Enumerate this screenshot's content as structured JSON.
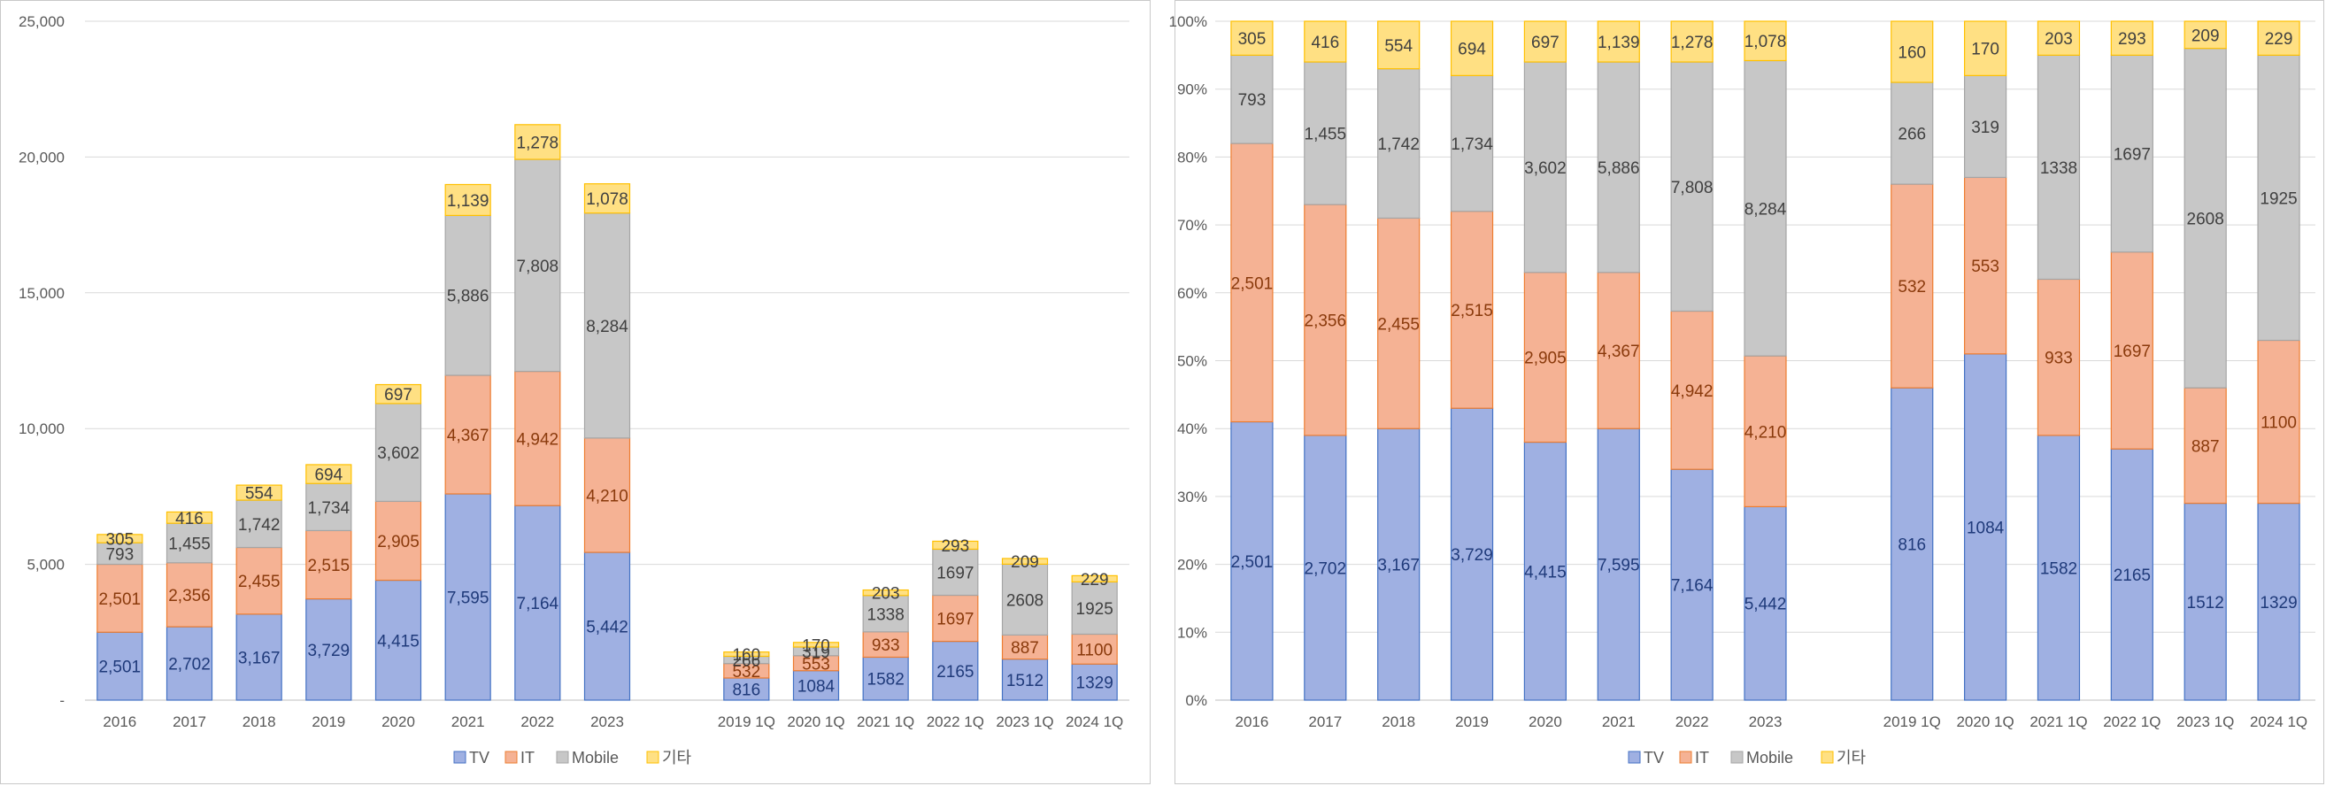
{
  "series_colors": {
    "TV": {
      "fill": "#9fb0e2",
      "stroke": "#4472c4",
      "label": "#1f3a7a"
    },
    "IT": {
      "fill": "#f5b294",
      "stroke": "#ed7d31",
      "label": "#8a3a0c"
    },
    "Mobile": {
      "fill": "#c7c7c7",
      "stroke": "#a5a5a5",
      "label": "#404040"
    },
    "기타": {
      "fill": "#ffe083",
      "stroke": "#ffc000",
      "label": "#404040"
    }
  },
  "chart_data": [
    {
      "type": "bar",
      "stacked": true,
      "categories": [
        "2016",
        "2017",
        "2018",
        "2019",
        "2020",
        "2021",
        "2022",
        "2023",
        "",
        "2019 1Q",
        "2020 1Q",
        "2021 1Q",
        "2022 1Q",
        "2023 1Q",
        "2024 1Q"
      ],
      "series": [
        {
          "name": "TV",
          "values": [
            2501,
            2702,
            3167,
            3729,
            4415,
            7595,
            7164,
            5442,
            null,
            816,
            1084,
            1582,
            2165,
            1512,
            1329
          ]
        },
        {
          "name": "IT",
          "values": [
            2501,
            2356,
            2455,
            2515,
            2905,
            4367,
            4942,
            4210,
            null,
            532,
            553,
            933,
            1697,
            887,
            1100
          ]
        },
        {
          "name": "Mobile",
          "values": [
            793,
            1455,
            1742,
            1734,
            3602,
            5886,
            7808,
            8284,
            null,
            266,
            319,
            1338,
            1697,
            2608,
            1925
          ]
        },
        {
          "name": "기타",
          "values": [
            305,
            416,
            554,
            694,
            697,
            1139,
            1278,
            1078,
            null,
            160,
            170,
            203,
            293,
            209,
            229
          ]
        }
      ],
      "data_labels": {
        "TV": [
          "2,501",
          "2,702",
          "3,167",
          "3,729",
          "4,415",
          "7,595",
          "7,164",
          "5,442",
          "",
          "816",
          "1084",
          "1582",
          "2165",
          "1512",
          "1329"
        ],
        "IT": [
          "2,501",
          "2,356",
          "2,455",
          "2,515",
          "2,905",
          "4,367",
          "4,942",
          "4,210",
          "",
          "532",
          "553",
          "933",
          "1697",
          "887",
          "1100"
        ],
        "Mobile": [
          "793",
          "1,455",
          "1,742",
          "1,734",
          "3,602",
          "5,886",
          "7,808",
          "8,284",
          "",
          "266",
          "319",
          "1338",
          "1697",
          "2608",
          "1925"
        ],
        "기타": [
          "305",
          "416",
          "554",
          "694",
          "697",
          "1,139",
          "1,278",
          "1,078",
          "",
          "160",
          "170",
          "203",
          "293",
          "209",
          "229"
        ]
      },
      "ylim": [
        0,
        25000
      ],
      "yticks": [
        0,
        5000,
        10000,
        15000,
        20000,
        25000
      ],
      "ytick_labels": [
        "-",
        "5,000",
        "10,000",
        "15,000",
        "20,000",
        "25,000"
      ],
      "grid": true,
      "legend": {
        "position": "bottom",
        "entries": [
          "TV",
          "IT",
          "Mobile",
          "기타"
        ]
      }
    },
    {
      "type": "bar",
      "stacked": true,
      "categories": [
        "2016",
        "2017",
        "2018",
        "2019",
        "2020",
        "2021",
        "2022",
        "2023",
        "",
        "2019 1Q",
        "2020 1Q",
        "2021 1Q",
        "2022 1Q",
        "2023 1Q",
        "2024 1Q"
      ],
      "series": [
        {
          "name": "TV",
          "values": [
            41,
            39,
            40,
            43,
            38,
            40,
            34,
            28.5,
            null,
            46,
            51,
            39,
            37,
            29,
            29
          ]
        },
        {
          "name": "IT",
          "values": [
            41,
            34,
            31,
            29,
            25,
            23,
            23.3,
            22.2,
            null,
            30,
            26,
            23,
            29,
            17,
            24
          ]
        },
        {
          "name": "Mobile",
          "values": [
            13,
            21,
            22,
            20,
            31,
            31,
            36.7,
            43.5,
            null,
            15,
            15,
            33,
            29,
            50,
            42
          ]
        },
        {
          "name": "기타",
          "values": [
            5,
            6,
            7,
            8,
            6,
            6,
            6,
            5.8,
            null,
            9,
            8,
            5,
            5,
            4,
            5
          ]
        }
      ],
      "data_labels": {
        "TV": [
          "2,501",
          "2,702",
          "3,167",
          "3,729",
          "4,415",
          "7,595",
          "7,164",
          "5,442",
          "",
          "816",
          "1084",
          "1582",
          "2165",
          "1512",
          "1329"
        ],
        "IT": [
          "2,501",
          "2,356",
          "2,455",
          "2,515",
          "2,905",
          "4,367",
          "4,942",
          "4,210",
          "",
          "532",
          "553",
          "933",
          "1697",
          "887",
          "1100"
        ],
        "Mobile": [
          "793",
          "1,455",
          "1,742",
          "1,734",
          "3,602",
          "5,886",
          "7,808",
          "8,284",
          "",
          "266",
          "319",
          "1338",
          "1697",
          "2608",
          "1925"
        ],
        "기타": [
          "305",
          "416",
          "554",
          "694",
          "697",
          "1,139",
          "1,278",
          "1,078",
          "",
          "160",
          "170",
          "203",
          "293",
          "209",
          "229"
        ]
      },
      "ylim": [
        0,
        100
      ],
      "yticks": [
        0,
        10,
        20,
        30,
        40,
        50,
        60,
        70,
        80,
        90,
        100
      ],
      "ytick_labels": [
        "0%",
        "10%",
        "20%",
        "30%",
        "40%",
        "50%",
        "60%",
        "70%",
        "80%",
        "90%",
        "100%"
      ],
      "grid": true,
      "legend": {
        "position": "bottom",
        "entries": [
          "TV",
          "IT",
          "Mobile",
          "기타"
        ]
      }
    }
  ]
}
